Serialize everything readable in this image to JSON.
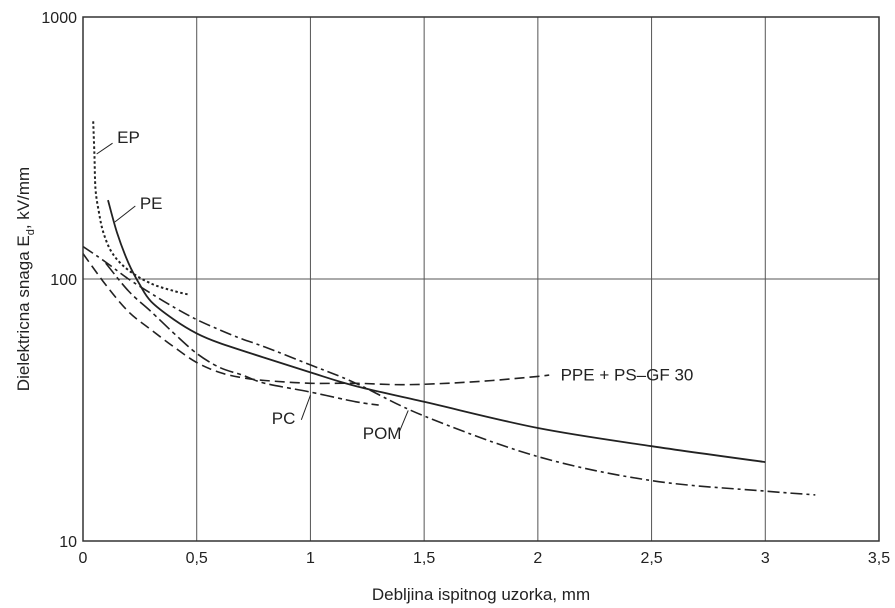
{
  "chart_data": {
    "type": "line",
    "xlabel": "Debljina ispitnog uzorka, mm",
    "ylabel": {
      "main": "Dielektricna snaga E",
      "subscript": "d",
      "suffix": ", kV/mm"
    },
    "xlim": [
      0,
      3.5
    ],
    "ylim": [
      10,
      1000
    ],
    "yscale": "log",
    "grid": true,
    "x_ticks": [
      {
        "value": 0,
        "label": "0"
      },
      {
        "value": 0.5,
        "label": "0,5"
      },
      {
        "value": 1,
        "label": "1"
      },
      {
        "value": 1.5,
        "label": "1,5"
      },
      {
        "value": 2,
        "label": "2"
      },
      {
        "value": 2.5,
        "label": "2,5"
      },
      {
        "value": 3,
        "label": "3"
      },
      {
        "value": 3.5,
        "label": "3,5"
      }
    ],
    "y_ticks": [
      {
        "value": 10,
        "label": "10"
      },
      {
        "value": 100,
        "label": "100"
      },
      {
        "value": 1000,
        "label": "1000"
      }
    ],
    "series": [
      {
        "name": "EP",
        "dash": "dotted",
        "x": [
          0.045,
          0.05,
          0.055,
          0.07,
          0.09,
          0.13,
          0.2,
          0.3,
          0.4,
          0.47
        ],
        "y": [
          400,
          300,
          220,
          180,
          150,
          125,
          108,
          96,
          90,
          87
        ]
      },
      {
        "name": "PE",
        "dash": "solid",
        "x": [
          0.11,
          0.15,
          0.2,
          0.25,
          0.3,
          0.4,
          0.5,
          0.6,
          0.8,
          1.0,
          1.2,
          1.5,
          2.0,
          2.5,
          3.0
        ],
        "y": [
          200,
          150,
          115,
          95,
          82,
          70,
          62,
          57,
          50,
          44,
          39,
          34,
          27,
          23,
          20
        ]
      },
      {
        "name": "PPE + PS–GF 30",
        "dash": "dashed",
        "x": [
          0.0,
          0.1,
          0.2,
          0.3,
          0.4,
          0.5,
          0.6,
          0.7,
          0.8,
          1.0,
          1.2,
          1.4,
          1.6,
          1.8,
          2.0,
          2.05
        ],
        "y": [
          125,
          95,
          75,
          64,
          55,
          48,
          44,
          42,
          41,
          40,
          40,
          39.5,
          40,
          41,
          42.5,
          43
        ]
      },
      {
        "name": "PC",
        "dash": "dash-dot-long",
        "x": [
          0.1,
          0.2,
          0.3,
          0.4,
          0.5,
          0.6,
          0.7,
          0.8,
          1.0,
          1.2,
          1.3
        ],
        "y": [
          115,
          90,
          75,
          62,
          52,
          46,
          43,
          40,
          37,
          34,
          33
        ]
      },
      {
        "name": "POM",
        "dash": "dash-dot",
        "x": [
          0.0,
          0.1,
          0.2,
          0.3,
          0.4,
          0.5,
          0.6,
          0.7,
          0.8,
          1.0,
          1.2,
          1.5,
          2.0,
          2.5,
          3.0,
          3.22
        ],
        "y": [
          133,
          116,
          100,
          88,
          78,
          70,
          64,
          59,
          55,
          47,
          40,
          30,
          21,
          17,
          15.5,
          15
        ]
      }
    ],
    "labels": [
      {
        "text": "EP",
        "x": 0.15,
        "y": 330,
        "leader": [
          [
            0.13,
            330
          ],
          [
            0.06,
            300
          ]
        ]
      },
      {
        "text": "PE",
        "x": 0.25,
        "y": 185,
        "leader": [
          [
            0.23,
            190
          ],
          [
            0.14,
            165
          ]
        ]
      },
      {
        "text": "PPE + PS–GF 30",
        "x": 2.1,
        "y": 41,
        "leader": []
      },
      {
        "text": "PC",
        "x": 0.83,
        "y": 28,
        "leader": [
          [
            0.96,
            29
          ],
          [
            1.0,
            36
          ]
        ]
      },
      {
        "text": "POM",
        "x": 1.23,
        "y": 24.5,
        "leader": [
          [
            1.39,
            26
          ],
          [
            1.43,
            31.5
          ]
        ]
      }
    ]
  }
}
